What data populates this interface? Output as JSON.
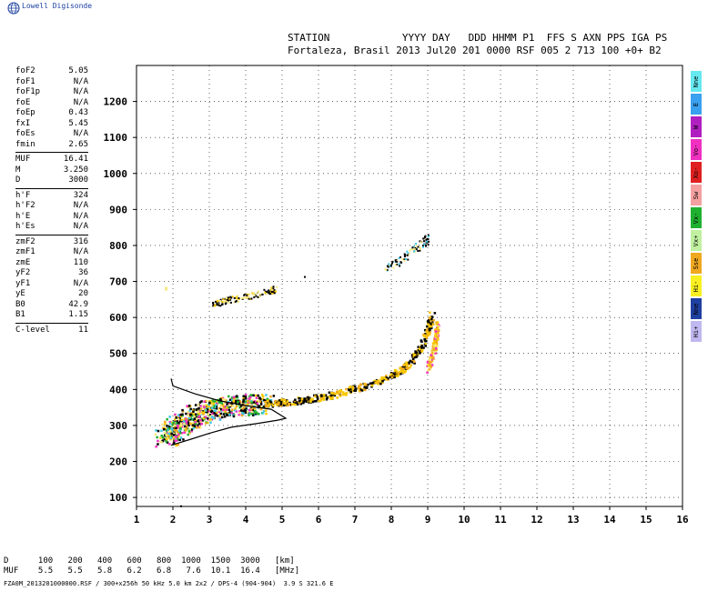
{
  "brand": "Lowell Digisonde",
  "header": {
    "line1": "STATION            YYYY DAY   DDD HHMM P1  FFS S AXN PPS IGA PS",
    "line2": "Fortaleza, Brasil 2013 Jul20 201 0000 RSF 005 2 713 100 +0+ B2"
  },
  "params": [
    {
      "k": "foF2",
      "v": "5.05"
    },
    {
      "k": "foF1",
      "v": "N/A"
    },
    {
      "k": "foF1p",
      "v": "N/A"
    },
    {
      "k": "foE",
      "v": "N/A"
    },
    {
      "k": "foEp",
      "v": "0.43"
    },
    {
      "k": "fxI",
      "v": "5.45"
    },
    {
      "k": "foEs",
      "v": "N/A"
    },
    {
      "k": "fmin",
      "v": "2.65"
    },
    {
      "k": "MUF",
      "v": "16.41",
      "sep": true
    },
    {
      "k": "M",
      "v": "3.250"
    },
    {
      "k": "D",
      "v": "3000"
    },
    {
      "k": "h'F",
      "v": "324",
      "sep": true
    },
    {
      "k": "h'F2",
      "v": "N/A"
    },
    {
      "k": "h'E",
      "v": "N/A"
    },
    {
      "k": "h'Es",
      "v": "N/A"
    },
    {
      "k": "zmF2",
      "v": "316",
      "sep": true
    },
    {
      "k": "zmF1",
      "v": "N/A"
    },
    {
      "k": "zmE",
      "v": "110"
    },
    {
      "k": "yF2",
      "v": "36"
    },
    {
      "k": "yF1",
      "v": "N/A"
    },
    {
      "k": "yE",
      "v": "20"
    },
    {
      "k": "B0",
      "v": "42.9"
    },
    {
      "k": "B1",
      "v": "1.15"
    },
    {
      "k": "C-level",
      "v": "11",
      "sep": true
    }
  ],
  "legend": [
    {
      "label": "Nne",
      "color": "#66e8f0"
    },
    {
      "label": "E",
      "color": "#3aa0f0"
    },
    {
      "label": "W",
      "color": "#b020c0"
    },
    {
      "label": "Vo-",
      "color": "#f030c0"
    },
    {
      "label": "Xo-",
      "color": "#e02020"
    },
    {
      "label": "Sw",
      "color": "#f4a0a0"
    },
    {
      "label": "Vx-",
      "color": "#20b030"
    },
    {
      "label": "Vx+",
      "color": "#c0f0a0"
    },
    {
      "label": "Sse",
      "color": "#f0a820"
    },
    {
      "label": "Hi-",
      "color": "#f8f020"
    },
    {
      "label": "Nne",
      "color": "#2040a0"
    },
    {
      "label": "Hi+",
      "color": "#c0b8f0"
    }
  ],
  "d_table": {
    "line1": "D      100   200   400   600   800  1000  1500  3000   [km]",
    "line2": "MUF    5.5   5.5   5.8   6.2   6.8   7.6  10.1  16.4   [MHz]"
  },
  "footer": "FZA0M_2013201000000.RSF / 300+x256h 50 kHz 5.0 km 2x2 / DPS-4 (904-904)  3.9 S 321.6 E",
  "chart_data": {
    "type": "scatter",
    "xlim": [
      1,
      16
    ],
    "ylim": [
      75,
      1300
    ],
    "xticks": [
      1,
      2,
      3,
      4,
      5,
      6,
      7,
      8,
      9,
      10,
      11,
      12,
      13,
      14,
      15,
      16
    ],
    "yticks": [
      100,
      200,
      300,
      400,
      500,
      600,
      700,
      800,
      900,
      1000,
      1100,
      1200
    ],
    "grid": true,
    "colors": {
      "black": "#000000",
      "yellow": "#f8c800",
      "orange": "#f0a820",
      "pink": "#f030c0",
      "cyan": "#40c8e8",
      "green": "#20b030",
      "light": "#f8e880"
    },
    "traces": [
      {
        "name": "F-trace",
        "points": [
          [
            1.75,
            265
          ],
          [
            2.0,
            290
          ],
          [
            2.3,
            310
          ],
          [
            2.6,
            330
          ],
          [
            3.0,
            345
          ],
          [
            3.5,
            355
          ],
          [
            4.0,
            360
          ],
          [
            4.5,
            362
          ],
          [
            5.0,
            366
          ],
          [
            5.5,
            372
          ],
          [
            6.0,
            380
          ],
          [
            6.5,
            390
          ],
          [
            7.0,
            405
          ],
          [
            7.5,
            420
          ],
          [
            8.0,
            440
          ],
          [
            8.3,
            460
          ],
          [
            8.6,
            490
          ],
          [
            8.8,
            520
          ],
          [
            9.0,
            570
          ],
          [
            9.1,
            610
          ]
        ]
      },
      {
        "name": "x-trace",
        "points": [
          [
            9.0,
            460
          ],
          [
            9.1,
            500
          ],
          [
            9.2,
            540
          ],
          [
            9.25,
            580
          ]
        ]
      },
      {
        "name": "multi-hop",
        "points": [
          [
            3.1,
            640
          ],
          [
            3.5,
            650
          ],
          [
            4.0,
            660
          ],
          [
            4.5,
            670
          ],
          [
            4.8,
            680
          ]
        ]
      },
      {
        "name": "second-hop",
        "points": [
          [
            7.8,
            740
          ],
          [
            8.2,
            760
          ],
          [
            8.6,
            790
          ],
          [
            8.9,
            810
          ],
          [
            9.0,
            820
          ]
        ]
      }
    ],
    "profile": {
      "points": [
        [
          1.95,
          245
        ],
        [
          2.5,
          262
        ],
        [
          3.0,
          278
        ],
        [
          3.6,
          295
        ],
        [
          4.3,
          305
        ],
        [
          4.9,
          315
        ],
        [
          5.1,
          320
        ],
        [
          4.7,
          345
        ],
        [
          4.0,
          355
        ],
        [
          3.3,
          368
        ],
        [
          2.6,
          388
        ],
        [
          2.0,
          410
        ],
        [
          1.95,
          430
        ]
      ]
    }
  }
}
